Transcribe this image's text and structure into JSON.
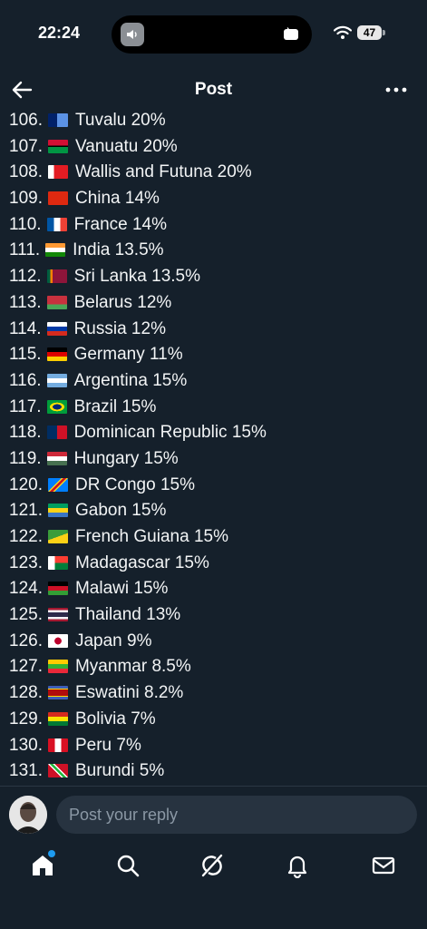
{
  "status": {
    "time": "22:24",
    "battery": "47"
  },
  "header": {
    "title": "Post"
  },
  "list": [
    {
      "rank": "106.",
      "name": "Tuvalu 20%",
      "flag": "tuvalu"
    },
    {
      "rank": "107.",
      "name": "Vanuatu 20%",
      "flag": "vanuatu"
    },
    {
      "rank": "108.",
      "name": "Wallis and Futuna 20%",
      "flag": "wallis"
    },
    {
      "rank": "109.",
      "name": "China 14%",
      "flag": "china"
    },
    {
      "rank": "110.",
      "name": "France 14%",
      "flag": "france"
    },
    {
      "rank": "111.",
      "name": "India 13.5%",
      "flag": "india"
    },
    {
      "rank": "112.",
      "name": "Sri Lanka 13.5%",
      "flag": "srilanka"
    },
    {
      "rank": "113.",
      "name": "Belarus 12%",
      "flag": "belarus"
    },
    {
      "rank": "114.",
      "name": "Russia 12%",
      "flag": "russia"
    },
    {
      "rank": "115.",
      "name": "Germany 11%",
      "flag": "germany"
    },
    {
      "rank": "116.",
      "name": "Argentina 15%",
      "flag": "argentina"
    },
    {
      "rank": "117.",
      "name": "Brazil 15%",
      "flag": "brazil"
    },
    {
      "rank": "118.",
      "name": "Dominican Republic 15%",
      "flag": "dominican"
    },
    {
      "rank": "119.",
      "name": "Hungary 15%",
      "flag": "hungary"
    },
    {
      "rank": "120.",
      "name": "DR Congo 15%",
      "flag": "drcongo"
    },
    {
      "rank": "121.",
      "name": "Gabon 15%",
      "flag": "gabon"
    },
    {
      "rank": "122.",
      "name": "French Guiana 15%",
      "flag": "guiana"
    },
    {
      "rank": "123.",
      "name": "Madagascar 15%",
      "flag": "madagascar"
    },
    {
      "rank": "124.",
      "name": "Malawi 15%",
      "flag": "malawi"
    },
    {
      "rank": "125.",
      "name": "Thailand 13%",
      "flag": "thailand"
    },
    {
      "rank": "126.",
      "name": "Japan 9%",
      "flag": "japan"
    },
    {
      "rank": "127.",
      "name": "Myanmar 8.5%",
      "flag": "myanmar"
    },
    {
      "rank": "128.",
      "name": "Eswatini 8.2%",
      "flag": "eswatini"
    },
    {
      "rank": "129.",
      "name": "Bolivia 7%",
      "flag": "bolivia"
    },
    {
      "rank": "130.",
      "name": "Peru 7%",
      "flag": "peru"
    },
    {
      "rank": "131.",
      "name": "Burundi 5%",
      "flag": "burundi"
    }
  ],
  "reply": {
    "placeholder": "Post your reply"
  },
  "tabs": [
    {
      "icon": "home-icon"
    },
    {
      "icon": "search-icon"
    },
    {
      "icon": "grok-icon"
    },
    {
      "icon": "bell-icon"
    },
    {
      "icon": "mail-icon"
    }
  ],
  "colors": {
    "background": "#15202b",
    "accent": "#1d9bf0",
    "input": "#273340"
  }
}
